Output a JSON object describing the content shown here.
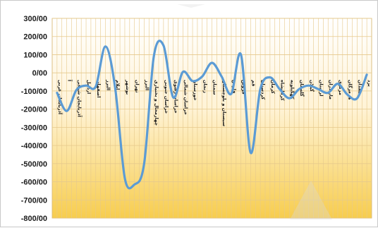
{
  "chart_data": {
    "type": "line",
    "title": "",
    "xlabel": "",
    "ylabel": "",
    "ylim": [
      -800,
      300
    ],
    "yticks": [
      "300/00",
      "200/00",
      "100/00",
      "0/00",
      "-100/00",
      "-200/00",
      "-300/00",
      "-400/00",
      "-500/00",
      "-600/00",
      "-700/00",
      "-800/00"
    ],
    "grid": true,
    "line_color": "#5B9BD5",
    "background_top": "#ffffff",
    "background_bottom": "#f7cd4e",
    "grid_color": "#e6c98c",
    "categories": [
      "آذربایجان غربی",
      "آ",
      "آذربایجان شرقی",
      "اردبیل",
      "اصفهان",
      "البرز",
      "ایلام",
      "بوشهر",
      "تهران",
      "البرز",
      "چهارمحال و بختیاری",
      "خراسان جنوبی",
      "خراسان رضوی",
      "خراسان شمالی",
      "خوزستان",
      "زنجان",
      "سمنان",
      "سیستان و بلوچستان",
      "فارس",
      "قزوین",
      "قم",
      "کردستان",
      "کرمان",
      "کرمانشاه",
      "کهگیلویه",
      "گلستان",
      "گیلان",
      "لرستان",
      "مازندران",
      "مرکزی",
      "هرمزگان",
      "همدان",
      "یزد"
    ],
    "values": [
      -110,
      -210,
      -95,
      -70,
      -75,
      145,
      -80,
      -580,
      -615,
      -500,
      90,
      150,
      -135,
      5,
      -45,
      -20,
      55,
      -20,
      -115,
      100,
      -440,
      -90,
      -25,
      -90,
      -140,
      -90,
      -70,
      -90,
      -110,
      -60,
      -120,
      -140,
      -10
    ]
  }
}
